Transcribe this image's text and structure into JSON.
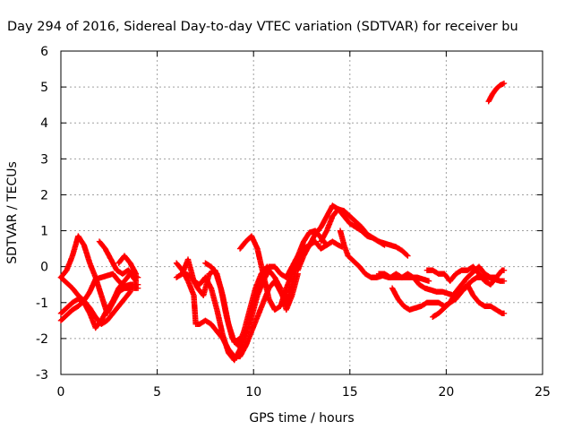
{
  "chart_data": {
    "type": "scatter",
    "title": "Day 294 of 2016, Sidereal Day-to-day VTEC variation (SDTVAR) for receiver bu",
    "xlabel": "GPS time / hours",
    "ylabel": "SDTVAR / TECUs",
    "xlim": [
      0,
      25
    ],
    "ylim": [
      -3,
      6
    ],
    "xticks": [
      "0",
      "5",
      "10",
      "15",
      "20",
      "25"
    ],
    "yticks": [
      "-3",
      "-2",
      "-1",
      "0",
      "1",
      "2",
      "3",
      "4",
      "5",
      "6"
    ],
    "grid": true,
    "marker": "+",
    "color": "#ff0000",
    "tracks": [
      [
        [
          0.0,
          -0.3
        ],
        [
          0.3,
          -0.1
        ],
        [
          0.6,
          0.3
        ],
        [
          0.9,
          0.85
        ],
        [
          1.2,
          0.6
        ],
        [
          1.5,
          0.1
        ],
        [
          1.8,
          -0.3
        ],
        [
          2.1,
          -0.8
        ],
        [
          2.4,
          -1.3
        ],
        [
          2.7,
          -1.0
        ],
        [
          3.0,
          -0.7
        ],
        [
          3.3,
          -0.6
        ],
        [
          3.6,
          -0.6
        ],
        [
          4.0,
          -0.6
        ]
      ],
      [
        [
          0.0,
          -1.5
        ],
        [
          0.3,
          -1.35
        ],
        [
          0.6,
          -1.2
        ],
        [
          0.9,
          -1.1
        ],
        [
          1.2,
          -0.95
        ],
        [
          1.5,
          -0.7
        ],
        [
          1.8,
          -0.35
        ],
        [
          2.1,
          -0.3
        ],
        [
          2.4,
          -0.25
        ],
        [
          2.7,
          -0.2
        ],
        [
          3.0,
          -0.4
        ],
        [
          3.3,
          -0.55
        ],
        [
          3.6,
          -0.5
        ],
        [
          4.0,
          -0.5
        ]
      ],
      [
        [
          0.0,
          -0.3
        ],
        [
          0.3,
          -0.45
        ],
        [
          0.6,
          -0.6
        ],
        [
          0.9,
          -0.8
        ],
        [
          1.2,
          -0.95
        ],
        [
          1.5,
          -1.15
        ],
        [
          1.8,
          -1.4
        ],
        [
          2.1,
          -1.6
        ],
        [
          2.4,
          -1.5
        ],
        [
          2.7,
          -1.3
        ],
        [
          3.0,
          -1.1
        ],
        [
          3.3,
          -0.9
        ],
        [
          3.6,
          -0.7
        ]
      ],
      [
        [
          0.0,
          -1.3
        ],
        [
          0.3,
          -1.15
        ],
        [
          0.6,
          -1.0
        ],
        [
          0.9,
          -0.9
        ],
        [
          1.2,
          -1.0
        ],
        [
          1.5,
          -1.3
        ],
        [
          1.8,
          -1.7
        ]
      ],
      [
        [
          2.0,
          0.7
        ],
        [
          2.3,
          0.5
        ],
        [
          2.6,
          0.2
        ],
        [
          2.9,
          -0.1
        ],
        [
          3.2,
          -0.2
        ],
        [
          3.5,
          -0.1
        ],
        [
          3.8,
          -0.25
        ],
        [
          4.0,
          -0.3
        ]
      ],
      [
        [
          1.8,
          -1.7
        ],
        [
          2.1,
          -1.5
        ],
        [
          2.4,
          -1.2
        ],
        [
          2.7,
          -0.95
        ],
        [
          3.0,
          -0.6
        ],
        [
          3.3,
          -0.4
        ],
        [
          3.6,
          -0.2
        ],
        [
          3.9,
          -0.4
        ]
      ],
      [
        [
          3.0,
          0.1
        ],
        [
          3.3,
          0.3
        ],
        [
          3.6,
          0.1
        ],
        [
          3.9,
          -0.2
        ]
      ],
      [
        [
          6.0,
          0.1
        ],
        [
          6.3,
          -0.1
        ],
        [
          6.6,
          -0.4
        ],
        [
          6.9,
          -0.8
        ],
        [
          7.0,
          -1.6
        ],
        [
          7.2,
          -1.6
        ],
        [
          7.5,
          -1.5
        ],
        [
          7.8,
          -1.6
        ],
        [
          8.1,
          -1.8
        ],
        [
          8.4,
          -2.0
        ],
        [
          8.7,
          -2.3
        ],
        [
          9.0,
          -2.5
        ],
        [
          9.3,
          -2.5
        ],
        [
          9.6,
          -2.2
        ],
        [
          9.9,
          -1.8
        ],
        [
          10.2,
          -1.4
        ],
        [
          10.5,
          -1.0
        ],
        [
          10.8,
          -0.6
        ],
        [
          11.1,
          -0.4
        ],
        [
          11.4,
          -0.7
        ],
        [
          11.7,
          -1.0
        ],
        [
          12.0,
          -0.5
        ],
        [
          12.3,
          0.1
        ],
        [
          12.6,
          0.6
        ]
      ],
      [
        [
          6.0,
          -0.3
        ],
        [
          6.3,
          -0.2
        ],
        [
          6.6,
          0.2
        ],
        [
          6.9,
          -0.4
        ],
        [
          7.2,
          -0.5
        ],
        [
          7.5,
          -0.3
        ],
        [
          7.8,
          -0.6
        ],
        [
          8.1,
          -1.2
        ],
        [
          8.4,
          -1.9
        ],
        [
          8.7,
          -2.4
        ],
        [
          9.0,
          -2.6
        ],
        [
          9.3,
          -2.3
        ],
        [
          9.6,
          -1.9
        ],
        [
          9.9,
          -1.4
        ],
        [
          10.2,
          -0.8
        ],
        [
          10.5,
          -0.4
        ],
        [
          10.8,
          -0.1
        ],
        [
          11.1,
          -0.3
        ],
        [
          11.4,
          -0.6
        ],
        [
          11.7,
          -1.2
        ],
        [
          12.0,
          -0.8
        ],
        [
          12.3,
          -0.2
        ]
      ],
      [
        [
          6.5,
          -0.2
        ],
        [
          6.8,
          -0.3
        ],
        [
          7.1,
          -0.6
        ],
        [
          7.4,
          -0.8
        ],
        [
          7.7,
          -0.2
        ],
        [
          8.0,
          -0.1
        ],
        [
          8.3,
          -0.6
        ],
        [
          8.6,
          -1.4
        ],
        [
          8.9,
          -2.0
        ],
        [
          9.2,
          -2.2
        ],
        [
          9.5,
          -1.8
        ],
        [
          9.8,
          -1.2
        ],
        [
          10.1,
          -0.6
        ],
        [
          10.4,
          -0.2
        ],
        [
          10.7,
          0.0
        ]
      ],
      [
        [
          7.5,
          0.1
        ],
        [
          7.8,
          0.0
        ],
        [
          8.1,
          -0.2
        ],
        [
          8.4,
          -0.8
        ],
        [
          8.7,
          -1.6
        ],
        [
          9.0,
          -2.1
        ],
        [
          9.3,
          -2.0
        ]
      ],
      [
        [
          9.3,
          0.5
        ],
        [
          9.6,
          0.7
        ],
        [
          9.9,
          0.85
        ],
        [
          10.2,
          0.5
        ],
        [
          10.5,
          -0.2
        ],
        [
          10.8,
          -0.9
        ],
        [
          11.1,
          -1.2
        ],
        [
          11.4,
          -1.1
        ],
        [
          11.7,
          -0.6
        ],
        [
          12.0,
          -0.2
        ],
        [
          12.3,
          0.3
        ],
        [
          12.6,
          0.7
        ],
        [
          12.9,
          0.95
        ],
        [
          13.2,
          1.0
        ],
        [
          13.5,
          0.8
        ],
        [
          13.8,
          0.6
        ]
      ],
      [
        [
          9.9,
          -1.2
        ],
        [
          10.2,
          -0.7
        ],
        [
          10.5,
          -0.3
        ],
        [
          10.8,
          0.0
        ],
        [
          11.1,
          0.0
        ],
        [
          11.4,
          -0.2
        ],
        [
          11.7,
          -0.3
        ],
        [
          12.0,
          0.0
        ],
        [
          12.3,
          0.3
        ],
        [
          12.6,
          0.5
        ],
        [
          12.9,
          0.6
        ],
        [
          13.2,
          0.7
        ],
        [
          13.5,
          0.5
        ],
        [
          13.8,
          0.6
        ],
        [
          14.1,
          0.7
        ],
        [
          14.4,
          0.6
        ],
        [
          14.6,
          0.55
        ]
      ],
      [
        [
          12.3,
          -0.1
        ],
        [
          12.6,
          0.3
        ],
        [
          12.9,
          0.6
        ],
        [
          13.2,
          0.9
        ],
        [
          13.5,
          1.1
        ],
        [
          13.8,
          1.4
        ],
        [
          14.1,
          1.7
        ],
        [
          14.4,
          1.6
        ],
        [
          14.7,
          1.55
        ],
        [
          15.0,
          1.4
        ],
        [
          15.3,
          1.25
        ],
        [
          15.6,
          1.1
        ],
        [
          15.9,
          0.9
        ],
        [
          16.2,
          0.8
        ],
        [
          16.5,
          0.7
        ],
        [
          16.8,
          0.65
        ],
        [
          17.1,
          0.6
        ],
        [
          17.4,
          0.55
        ],
        [
          17.7,
          0.45
        ],
        [
          18.0,
          0.3
        ]
      ],
      [
        [
          13.5,
          0.7
        ],
        [
          13.8,
          1.0
        ],
        [
          14.1,
          1.4
        ],
        [
          14.4,
          1.6
        ],
        [
          14.7,
          1.4
        ],
        [
          15.0,
          1.2
        ],
        [
          15.3,
          1.1
        ],
        [
          15.6,
          1.0
        ],
        [
          15.9,
          0.85
        ],
        [
          16.2,
          0.8
        ],
        [
          16.5,
          0.7
        ],
        [
          16.8,
          0.6
        ]
      ],
      [
        [
          14.5,
          1.0
        ],
        [
          14.7,
          0.6
        ],
        [
          14.9,
          0.3
        ],
        [
          15.2,
          0.15
        ],
        [
          15.5,
          0.0
        ],
        [
          15.8,
          -0.2
        ],
        [
          16.1,
          -0.3
        ],
        [
          16.4,
          -0.3
        ],
        [
          16.7,
          -0.25
        ],
        [
          17.0,
          -0.3
        ],
        [
          17.3,
          -0.3
        ],
        [
          17.6,
          -0.3
        ],
        [
          17.9,
          -0.3
        ],
        [
          18.2,
          -0.3
        ],
        [
          18.5,
          -0.3
        ],
        [
          18.8,
          -0.35
        ],
        [
          19.1,
          -0.4
        ]
      ],
      [
        [
          17.2,
          -0.6
        ],
        [
          17.5,
          -0.9
        ],
        [
          17.8,
          -1.1
        ],
        [
          18.1,
          -1.2
        ],
        [
          18.4,
          -1.15
        ],
        [
          18.7,
          -1.1
        ],
        [
          19.0,
          -1.0
        ],
        [
          19.3,
          -1.0
        ],
        [
          19.6,
          -1.0
        ],
        [
          19.9,
          -1.1
        ],
        [
          20.2,
          -1.0
        ],
        [
          20.5,
          -0.9
        ],
        [
          20.8,
          -0.7
        ],
        [
          21.1,
          -0.5
        ],
        [
          21.4,
          -0.8
        ],
        [
          21.7,
          -1.0
        ],
        [
          22.0,
          -1.1
        ],
        [
          22.3,
          -1.1
        ],
        [
          22.6,
          -1.2
        ],
        [
          22.9,
          -1.3
        ],
        [
          23.0,
          -1.3
        ]
      ],
      [
        [
          16.5,
          -0.2
        ],
        [
          16.8,
          -0.2
        ],
        [
          17.1,
          -0.3
        ],
        [
          17.4,
          -0.2
        ],
        [
          17.7,
          -0.3
        ],
        [
          18.0,
          -0.2
        ],
        [
          18.3,
          -0.3
        ],
        [
          18.6,
          -0.5
        ],
        [
          18.9,
          -0.6
        ],
        [
          19.2,
          -0.65
        ],
        [
          19.5,
          -0.7
        ],
        [
          19.8,
          -0.7
        ],
        [
          20.1,
          -0.75
        ],
        [
          20.4,
          -0.8
        ],
        [
          20.7,
          -0.7
        ],
        [
          21.0,
          -0.6
        ],
        [
          21.3,
          -0.4
        ],
        [
          21.6,
          -0.3
        ],
        [
          21.9,
          -0.3
        ],
        [
          22.2,
          -0.3
        ],
        [
          22.5,
          -0.35
        ],
        [
          22.8,
          -0.4
        ],
        [
          23.0,
          -0.4
        ]
      ],
      [
        [
          19.0,
          -0.1
        ],
        [
          19.3,
          -0.1
        ],
        [
          19.6,
          -0.2
        ],
        [
          19.9,
          -0.2
        ],
        [
          20.2,
          -0.4
        ],
        [
          20.5,
          -0.2
        ],
        [
          20.8,
          -0.1
        ],
        [
          21.1,
          -0.1
        ],
        [
          21.4,
          0.0
        ],
        [
          21.7,
          -0.2
        ],
        [
          22.0,
          -0.4
        ],
        [
          22.3,
          -0.5
        ],
        [
          22.6,
          -0.3
        ],
        [
          22.9,
          -0.1
        ],
        [
          23.0,
          -0.1
        ]
      ],
      [
        [
          19.3,
          -1.4
        ],
        [
          19.6,
          -1.3
        ],
        [
          19.9,
          -1.15
        ],
        [
          20.2,
          -1.0
        ],
        [
          20.5,
          -0.7
        ],
        [
          20.8,
          -0.5
        ],
        [
          21.1,
          -0.3
        ],
        [
          21.4,
          -0.15
        ],
        [
          21.7,
          0.0
        ],
        [
          22.0,
          -0.2
        ],
        [
          22.3,
          -0.3
        ],
        [
          22.6,
          -0.3
        ]
      ],
      [
        [
          22.2,
          4.6
        ],
        [
          22.4,
          4.8
        ],
        [
          22.6,
          4.95
        ],
        [
          22.8,
          5.05
        ],
        [
          23.0,
          5.1
        ]
      ]
    ]
  }
}
